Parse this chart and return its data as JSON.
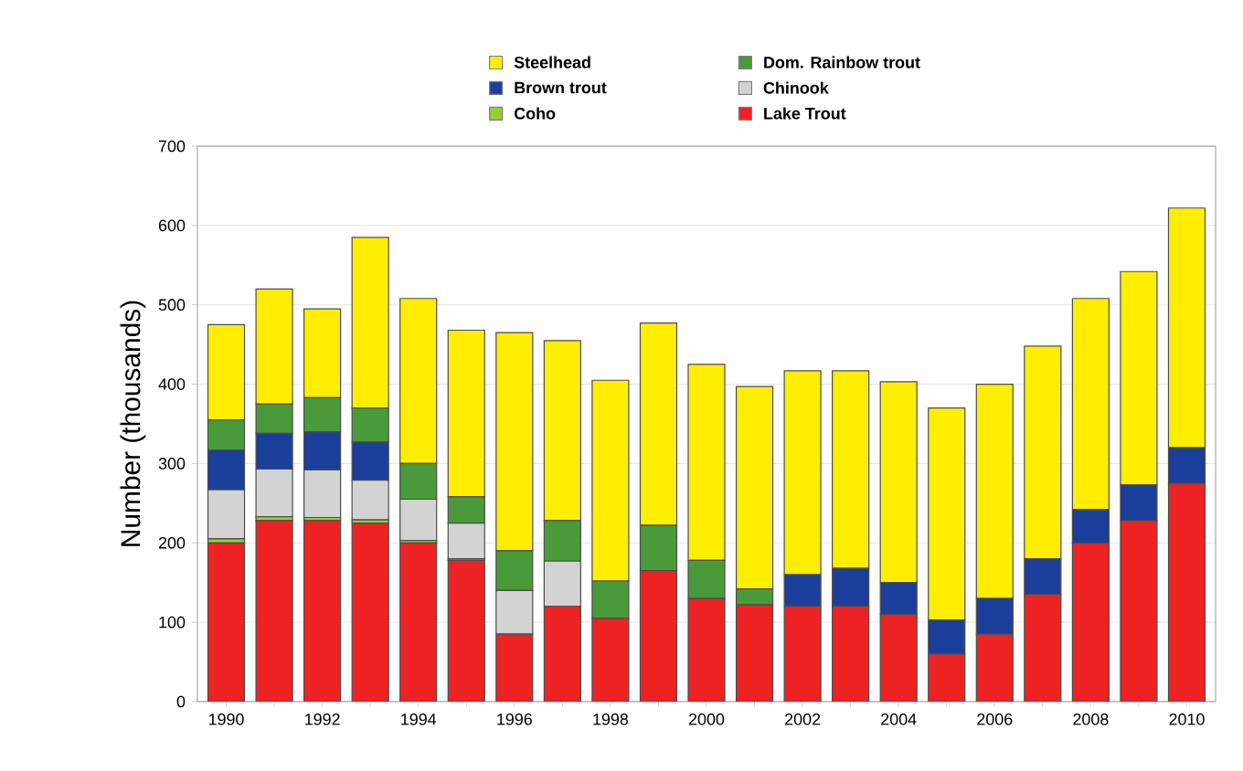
{
  "chart_data": {
    "type": "bar",
    "stacked": true,
    "ylabel": "Number (thousands)",
    "categories": [
      "1990",
      null,
      "1992",
      null,
      "1994",
      null,
      "1996",
      null,
      "1998",
      null,
      "2000",
      null,
      "2002",
      null,
      "2004",
      null,
      "2006",
      null,
      "2008",
      null,
      "2010"
    ],
    "ylim": [
      0,
      700
    ],
    "yticks": [
      0,
      100,
      200,
      300,
      400,
      500,
      600,
      700
    ],
    "grid": "y",
    "legend": "top",
    "series": [
      {
        "name": "Lake Trout",
        "color": "#ee2222",
        "values": [
          200,
          228,
          228,
          225,
          200,
          178,
          85,
          120,
          105,
          165,
          130,
          122,
          120,
          120,
          110,
          60,
          85,
          135,
          200,
          228,
          275
        ]
      },
      {
        "name": "Coho",
        "color": "#9acd32",
        "values": [
          5,
          5,
          4,
          4,
          3,
          2,
          0,
          0,
          0,
          0,
          0,
          0,
          0,
          0,
          0,
          0,
          0,
          0,
          0,
          0,
          0
        ]
      },
      {
        "name": "Chinook",
        "color": "#d3d3d3",
        "values": [
          62,
          60,
          60,
          50,
          52,
          45,
          55,
          57,
          0,
          0,
          0,
          0,
          0,
          0,
          0,
          0,
          0,
          0,
          0,
          0,
          0
        ]
      },
      {
        "name": "Brown trout",
        "color": "#1a3f9a",
        "values": [
          50,
          45,
          48,
          48,
          0,
          0,
          0,
          0,
          0,
          0,
          0,
          0,
          40,
          48,
          40,
          43,
          45,
          45,
          42,
          45,
          45
        ]
      },
      {
        "name": "Dom. Rainbow trout",
        "color": "#4a9a3a",
        "values": [
          38,
          37,
          43,
          43,
          45,
          33,
          50,
          51,
          47,
          57,
          48,
          20,
          0,
          0,
          0,
          0,
          0,
          0,
          0,
          0,
          0
        ]
      },
      {
        "name": "Steelhead",
        "color": "#ffee00",
        "values": [
          120,
          145,
          112,
          215,
          208,
          210,
          275,
          227,
          253,
          255,
          247,
          255,
          257,
          249,
          253,
          267,
          270,
          268,
          266,
          269,
          302
        ]
      }
    ]
  }
}
